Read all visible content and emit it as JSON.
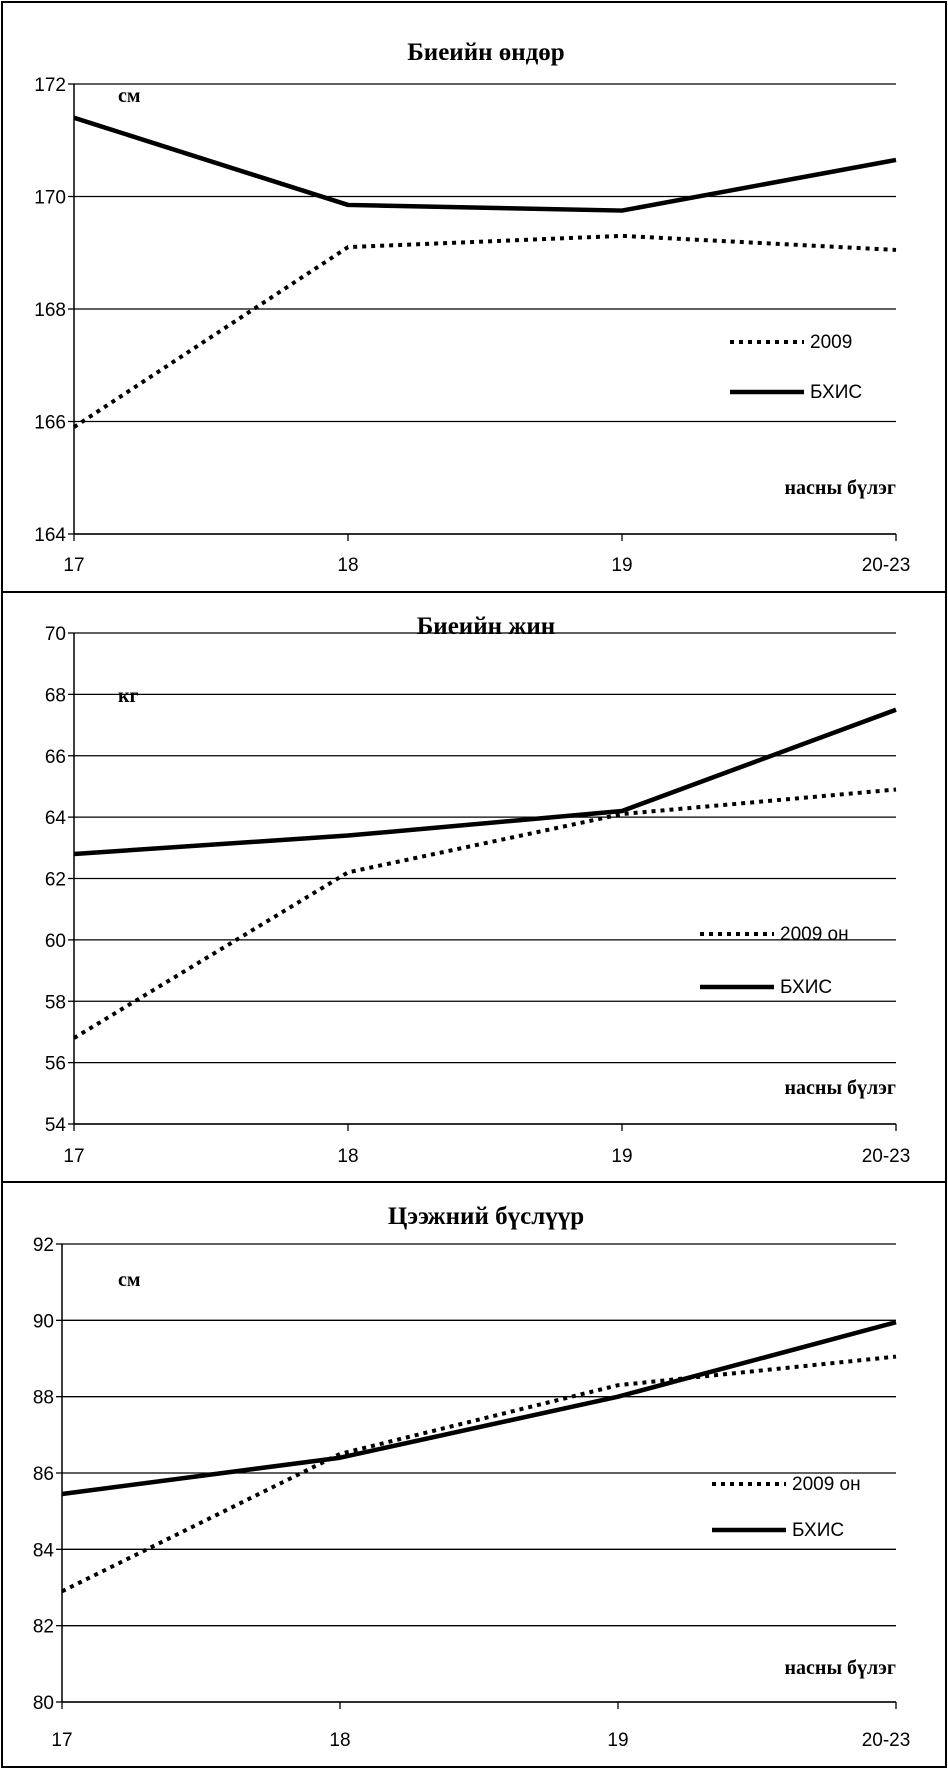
{
  "chart_data": [
    {
      "type": "line",
      "title": "Биеийн өндөр",
      "unit": "см",
      "xlabel": "насны бүлэг",
      "categories": [
        "17",
        "18",
        "19",
        "20-23"
      ],
      "ylim": [
        164,
        172
      ],
      "yticks": [
        "164",
        "166",
        "168",
        "170",
        "172"
      ],
      "grid": true,
      "legend": "right",
      "series": [
        {
          "name": "2009",
          "style": "dotted",
          "values": [
            165.9,
            169.1,
            169.3,
            169.05
          ]
        },
        {
          "name": "БХИС",
          "style": "solid",
          "values": [
            171.4,
            169.85,
            169.75,
            170.65
          ]
        }
      ]
    },
    {
      "type": "line",
      "title": "Биеийн жин",
      "unit": "кг",
      "xlabel": "насны бүлэг",
      "categories": [
        "17",
        "18",
        "19",
        "20-23"
      ],
      "ylim": [
        54,
        70
      ],
      "yticks": [
        "54",
        "56",
        "58",
        "60",
        "62",
        "64",
        "66",
        "68",
        "70"
      ],
      "grid": true,
      "legend": "right",
      "series": [
        {
          "name": "2009 он",
          "style": "dotted",
          "values": [
            56.8,
            62.2,
            64.1,
            64.9
          ]
        },
        {
          "name": "БХИС",
          "style": "solid",
          "values": [
            62.8,
            63.4,
            64.2,
            67.5
          ]
        }
      ]
    },
    {
      "type": "line",
      "title": "Цээжний бүслүүр",
      "unit": "см",
      "xlabel": "насны бүлэг",
      "categories": [
        "17",
        "18",
        "19",
        "20-23"
      ],
      "ylim": [
        80,
        92
      ],
      "yticks": [
        "80",
        "82",
        "84",
        "86",
        "88",
        "90",
        "92"
      ],
      "grid": true,
      "legend": "right",
      "series": [
        {
          "name": "2009 он",
          "style": "dotted",
          "values": [
            82.9,
            86.5,
            88.3,
            89.05
          ]
        },
        {
          "name": "БХИС",
          "style": "solid",
          "values": [
            85.45,
            86.4,
            88.0,
            89.95
          ]
        }
      ]
    }
  ]
}
